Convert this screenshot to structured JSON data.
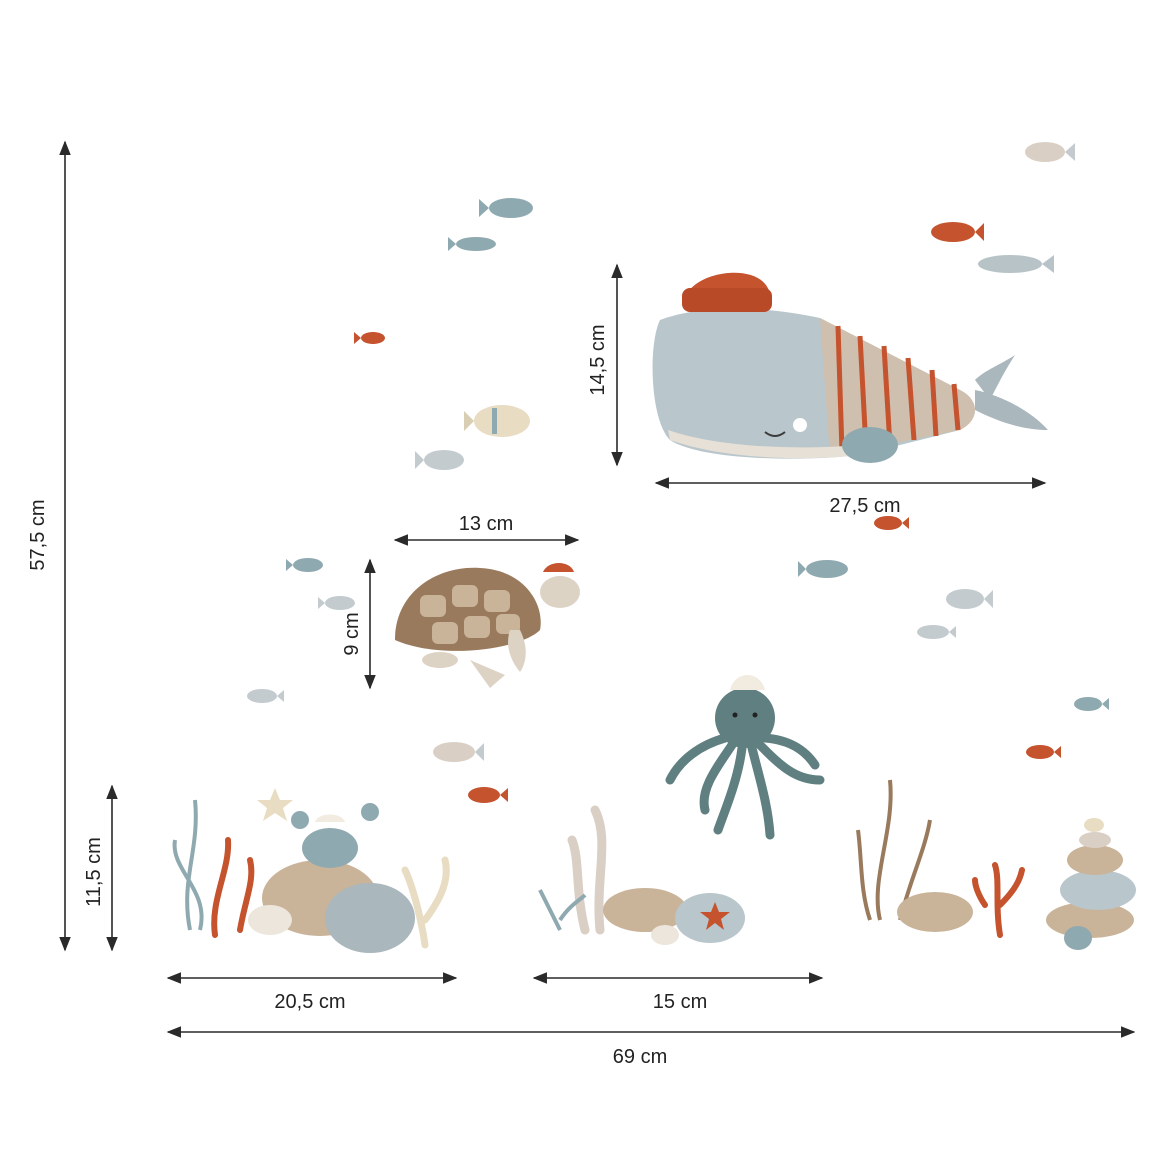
{
  "dimensions": {
    "total_height": "57,5 cm",
    "total_width": "69 cm",
    "whale_height": "14,5 cm",
    "whale_width": "27,5 cm",
    "turtle_width": "13 cm",
    "turtle_height": "9 cm",
    "left_group_height": "11,5 cm",
    "left_group_width": "20,5 cm",
    "middle_group_width": "15 cm"
  },
  "colors": {
    "blue_grey": "#8fa9b0",
    "rust": "#c4532e",
    "sand": "#c9b49a",
    "pale_grey": "#c3cbcf",
    "teal": "#5f7f80",
    "brown": "#9a7a5c"
  },
  "decal_items": [
    "whale-icon",
    "turtle-icon",
    "octopus-icon",
    "crab-icon",
    "fish-icon",
    "seaweed-icon",
    "coral-icon",
    "rock-icon",
    "shell-icon",
    "starfish-icon",
    "stone-stack-icon"
  ]
}
